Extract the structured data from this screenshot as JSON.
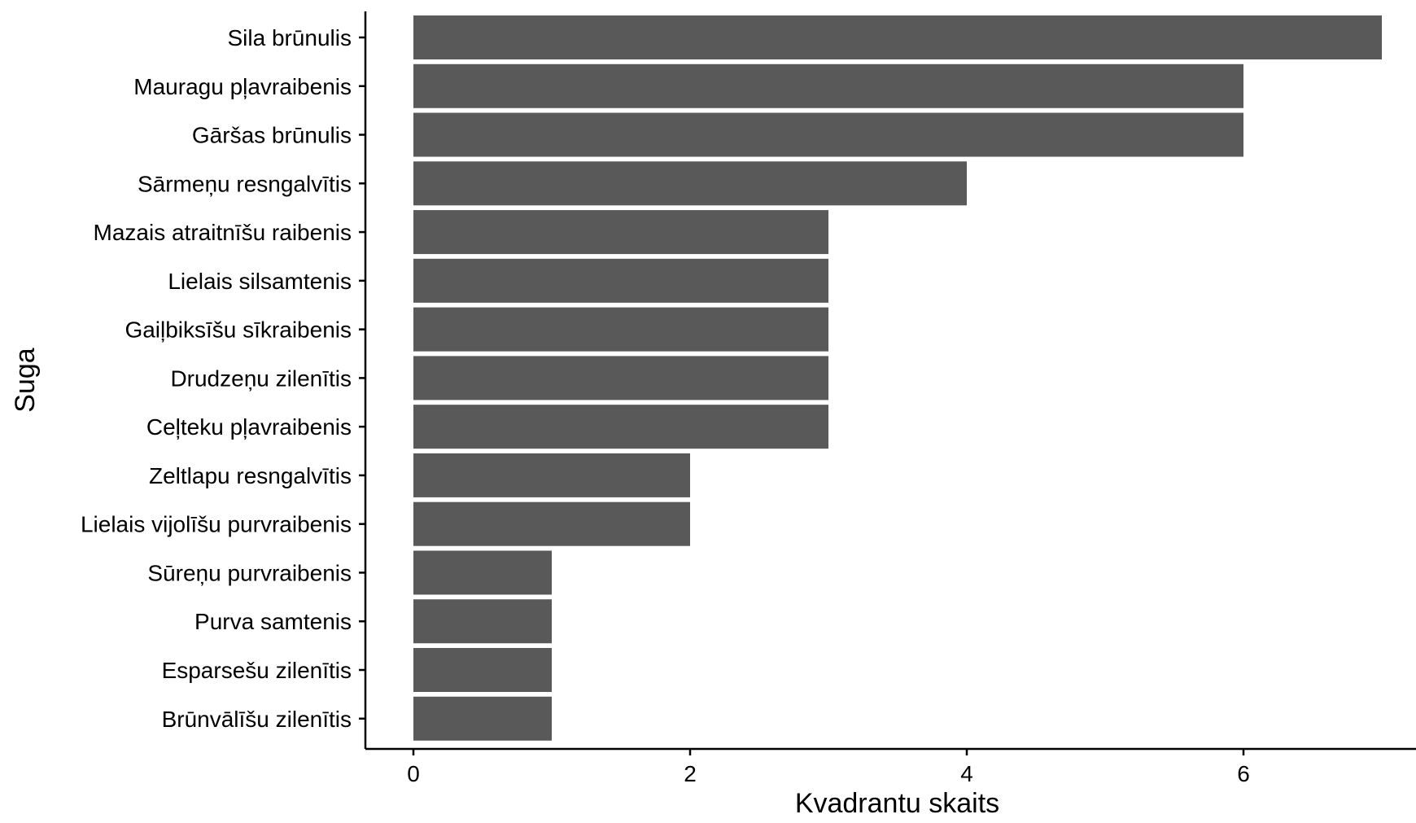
{
  "chart_data": {
    "type": "bar",
    "orientation": "horizontal",
    "categories": [
      "Sila brūnulis",
      "Mauragu pļavraibenis",
      "Gāršas brūnulis",
      "Sārmeņu resngalvītis",
      "Mazais atraitnīšu raibenis",
      "Lielais silsamtenis",
      "Gaiļbiksīšu sīkraibenis",
      "Drudzeņu zilenītis",
      "Ceļteku pļavraibenis",
      "Zeltlapu resngalvītis",
      "Lielais vijolīšu purvraibenis",
      "Sūreņu purvraibenis",
      "Purva samtenis",
      "Esparsešu zilenītis",
      "Brūnvālīšu zilenītis"
    ],
    "values": [
      7,
      6,
      6,
      4,
      3,
      3,
      3,
      3,
      3,
      2,
      2,
      1,
      1,
      1,
      1
    ],
    "xlabel": "Kvadrantu skaits",
    "ylabel": "Suga",
    "xlim": [
      0,
      7
    ],
    "xticks": [
      0,
      2,
      4,
      6
    ],
    "grid": false,
    "bar_color": "#595959",
    "axis_color": "#000000"
  }
}
